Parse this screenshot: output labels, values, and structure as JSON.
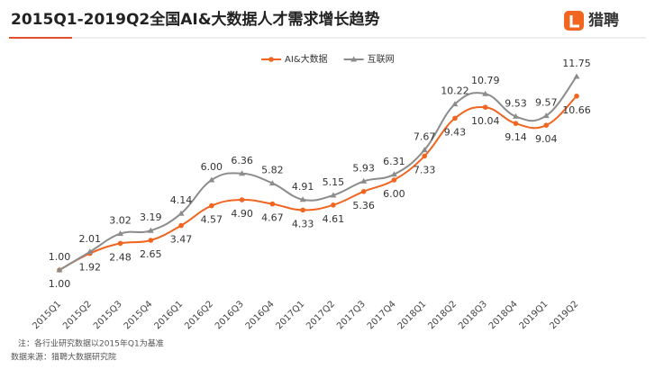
{
  "chart_data": {
    "type": "line",
    "title": "2015Q1-2019Q2全国AI&大数据人才需求增长趋势",
    "brand": "猎聘",
    "notes": [
      "注：各行业研究数据以2015年Q1为基准",
      "数据来源：猎聘大数据研究院"
    ],
    "categories": [
      "2015Q1",
      "2015Q2",
      "2015Q3",
      "2015Q4",
      "2016Q1",
      "2016Q2",
      "2016Q3",
      "2016Q4",
      "2017Q1",
      "2017Q2",
      "2017Q3",
      "2017Q4",
      "2018Q1",
      "2018Q2",
      "2018Q3",
      "2018Q4",
      "2019Q1",
      "2019Q2"
    ],
    "series": [
      {
        "name": "AI&大数据",
        "color": "#f0651f",
        "marker": "circle",
        "values": [
          1.0,
          1.92,
          2.48,
          2.65,
          3.47,
          4.57,
          4.9,
          4.67,
          4.33,
          4.61,
          5.36,
          6.0,
          7.33,
          9.43,
          10.04,
          9.14,
          9.04,
          10.66
        ],
        "value_labels": [
          "1.00",
          "1.92",
          "2.48",
          "2.65",
          "3.47",
          "4.57",
          "4.90",
          "4.67",
          "4.33",
          "4.61",
          "5.36",
          "6.00",
          "7.33",
          "9.43",
          "10.04",
          "9.14",
          "9.04",
          "10.66"
        ]
      },
      {
        "name": "互联网",
        "color": "#8c8c8c",
        "marker": "triangle",
        "values": [
          1.0,
          2.01,
          3.02,
          3.19,
          4.14,
          6.0,
          6.36,
          5.82,
          4.91,
          5.15,
          5.93,
          6.31,
          7.67,
          10.22,
          10.79,
          9.53,
          9.57,
          11.75
        ],
        "value_labels": [
          "1.00",
          "2.01",
          "3.02",
          "3.19",
          "4.14",
          "6.00",
          "6.36",
          "5.82",
          "4.91",
          "5.15",
          "5.93",
          "6.31",
          "7.67",
          "10.22",
          "10.79",
          "9.53",
          "9.57",
          "11.75"
        ]
      }
    ],
    "ylim": [
      0,
      12
    ],
    "smooth": true
  }
}
